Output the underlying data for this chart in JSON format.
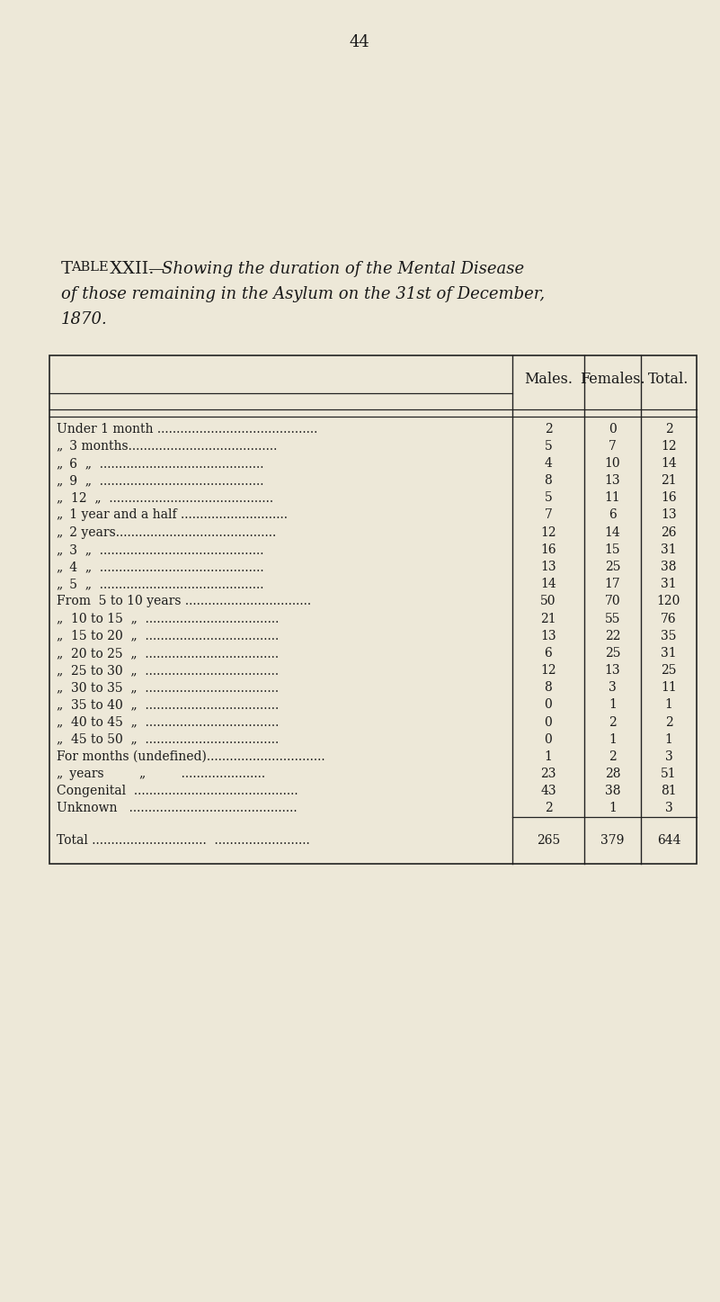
{
  "page_number": "44",
  "title_parts_line1": [
    {
      "text": "T",
      "style": "normal",
      "size": 13
    },
    {
      "text": "ABLE ",
      "style": "smallcaps",
      "size": 10
    },
    {
      "text": "XXII.",
      "style": "normal",
      "size": 13
    },
    {
      "text": "—",
      "style": "italic",
      "size": 12
    },
    {
      "text": "Showing the duration of the Mental Disease",
      "style": "italic",
      "size": 12
    }
  ],
  "title_line2": "of those remaining in the Asylum on the 31st of December,",
  "title_line3": "1870.",
  "col_headers": [
    "Males.",
    "Females.",
    "Total."
  ],
  "rows": [
    [
      "Under 1 month ..........................................",
      "2",
      "0",
      "2"
    ],
    [
      "„ 3 months.......................................",
      "5",
      "7",
      "12"
    ],
    [
      "„ 6  „  ...........................................",
      "4",
      "10",
      "14"
    ],
    [
      "„ 9  „  ...........................................",
      "8",
      "13",
      "21"
    ],
    [
      "„  12  „  ...........................................",
      "5",
      "11",
      "16"
    ],
    [
      "„ 1 year and a half ............................",
      "7",
      "6",
      "13"
    ],
    [
      "„ 2 years..........................................",
      "12",
      "14",
      "26"
    ],
    [
      "„ 3  „  ...........................................",
      "16",
      "15",
      "31"
    ],
    [
      "„ 4  „  ...........................................",
      "13",
      "25",
      "38"
    ],
    [
      "„ 5  „  ...........................................",
      "14",
      "17",
      "31"
    ],
    [
      "From  5 to 10 years .................................",
      "50",
      "70",
      "120"
    ],
    [
      "„  10 to 15  „  ...................................",
      "21",
      "55",
      "76"
    ],
    [
      "„  15 to 20  „  ...................................",
      "13",
      "22",
      "35"
    ],
    [
      "„  20 to 25  „  ...................................",
      "6",
      "25",
      "31"
    ],
    [
      "„  25 to 30  „  ...................................",
      "12",
      "13",
      "25"
    ],
    [
      "„  30 to 35  „  ...................................",
      "8",
      "3",
      "11"
    ],
    [
      "„  35 to 40  „  ...................................",
      "0",
      "1",
      "1"
    ],
    [
      "„  40 to 45  „  ...................................",
      "0",
      "2",
      "2"
    ],
    [
      "„  45 to 50  „  ...................................",
      "0",
      "1",
      "1"
    ],
    [
      "For months (undefined)...............................",
      "1",
      "2",
      "3"
    ],
    [
      "„ years         „         ......................",
      "23",
      "28",
      "51"
    ],
    [
      "Congenital  ...........................................",
      "43",
      "38",
      "81"
    ],
    [
      "Unknown   ............................................",
      "2",
      "1",
      "3"
    ]
  ],
  "total_label": "Total ..............................  .........................",
  "total_values": [
    "265",
    "379",
    "644"
  ],
  "bg_color": "#ede8d8",
  "text_color": "#1a1a1a",
  "border_color": "#222222"
}
